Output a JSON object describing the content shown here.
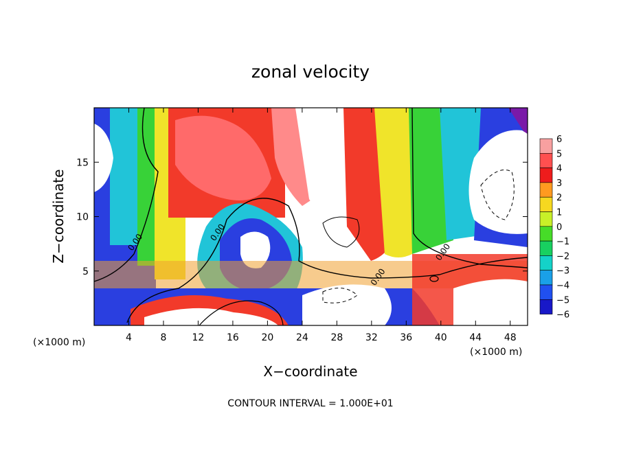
{
  "chart_data": {
    "type": "heatmap",
    "title": "zonal velocity",
    "xlabel": "X−coordinate",
    "ylabel": "Z−coordinate",
    "x_unit": "(×1000 m)",
    "y_unit": "(×1000 m)",
    "xlim": [
      0,
      50
    ],
    "ylim": [
      0,
      20
    ],
    "x_ticks": [
      4,
      8,
      12,
      16,
      20,
      24,
      28,
      32,
      36,
      40,
      44,
      48
    ],
    "y_ticks": [
      5,
      10,
      15
    ],
    "colorbar": {
      "levels": [
        "6",
        "5",
        "4",
        "3",
        "2",
        "1",
        "0",
        "−1",
        "−2",
        "−3",
        "−4",
        "−5",
        "−6"
      ],
      "min": -6,
      "max": 6
    },
    "contour_labels": [
      {
        "text": "0.00",
        "x": 5,
        "y": 7.5
      },
      {
        "text": "0.00",
        "x": 14.5,
        "y": 8.4
      },
      {
        "text": "0.00",
        "x": 33,
        "y": 4.3
      },
      {
        "text": "0.00",
        "x": 40.5,
        "y": 6.6
      }
    ],
    "footer": "CONTOUR INTERVAL = 1.000E+01"
  }
}
